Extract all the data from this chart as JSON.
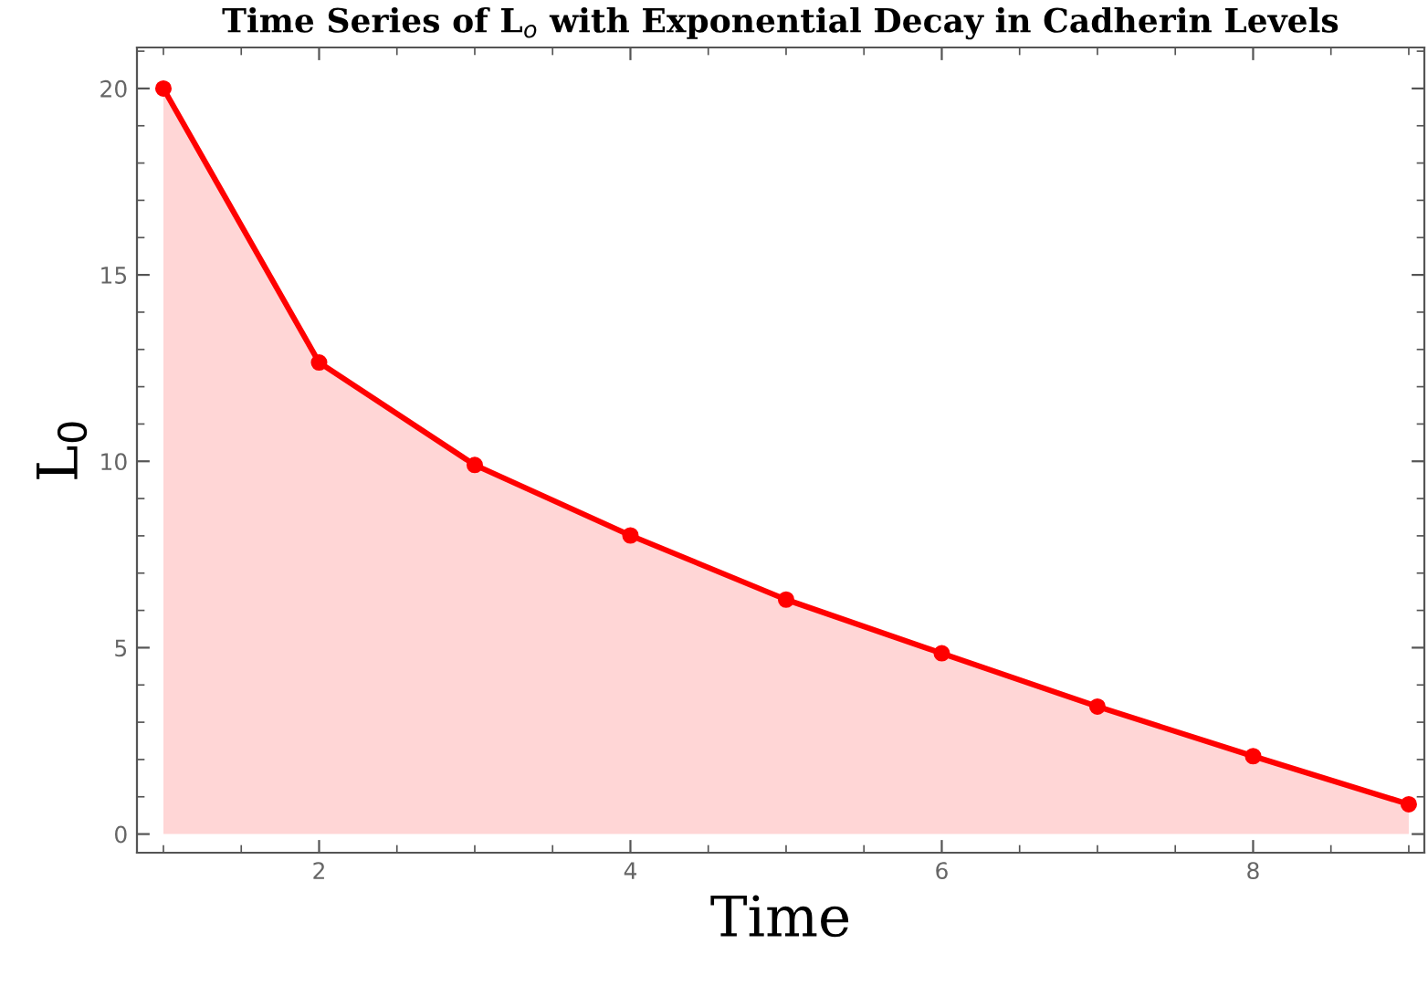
{
  "chart_data": {
    "type": "area",
    "title": "Time Series of L$_{o}$ with Exponential Decay in Cadherin Levels",
    "xlabel": "Time",
    "ylabel": "L$_{0}$",
    "x": [
      1,
      2,
      3,
      4,
      5,
      6,
      7,
      8,
      9
    ],
    "series": [
      {
        "color": "#ff0000",
        "values": [
          20,
          12.65,
          9.9,
          8.01,
          6.29,
          4.85,
          3.42,
          2.09,
          0.8
        ]
      }
    ],
    "marker": "circle",
    "line_style": "solid",
    "xlim": [
      0.83,
      9.1
    ],
    "ylim": [
      -0.5,
      21.1
    ],
    "xticks": [
      2,
      4,
      6,
      8
    ],
    "yticks": [
      0,
      5,
      10,
      15,
      20
    ],
    "grid": false,
    "legend": false
  }
}
